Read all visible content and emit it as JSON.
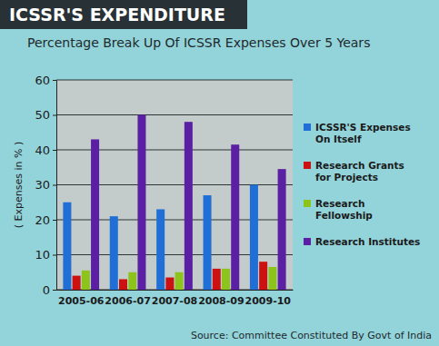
{
  "chart_data": {
    "type": "bar",
    "title": "ICSSR'S EXPENDITURE",
    "subtitle": "Percentage Break Up Of ICSSR Expenses Over 5 Years",
    "y_label": "( Expenses in % )",
    "source": "Source: Committee Constituted By Govt of India",
    "categories": [
      "2005-06",
      "2006-07",
      "2007-08",
      "2008-09",
      "2009-10"
    ],
    "series": [
      {
        "name": "ICSSR'S Expenses On Itself",
        "color": "#1f6fd6",
        "values": [
          25,
          21,
          23,
          27,
          30
        ]
      },
      {
        "name": "Research Grants for Projects",
        "color": "#cc1111",
        "values": [
          4,
          3,
          3.5,
          6,
          8
        ]
      },
      {
        "name": "Research Fellowship",
        "color": "#8cc41c",
        "values": [
          5.5,
          5,
          5,
          6,
          6.5
        ]
      },
      {
        "name": "Research Institutes",
        "color": "#5b1fa3",
        "values": [
          43,
          50,
          48,
          41.5,
          34.5
        ]
      }
    ],
    "ylim": [
      0,
      60
    ],
    "yticks": [
      0,
      10,
      20,
      30,
      40,
      50,
      60
    ],
    "grid": true,
    "legend": "right"
  }
}
